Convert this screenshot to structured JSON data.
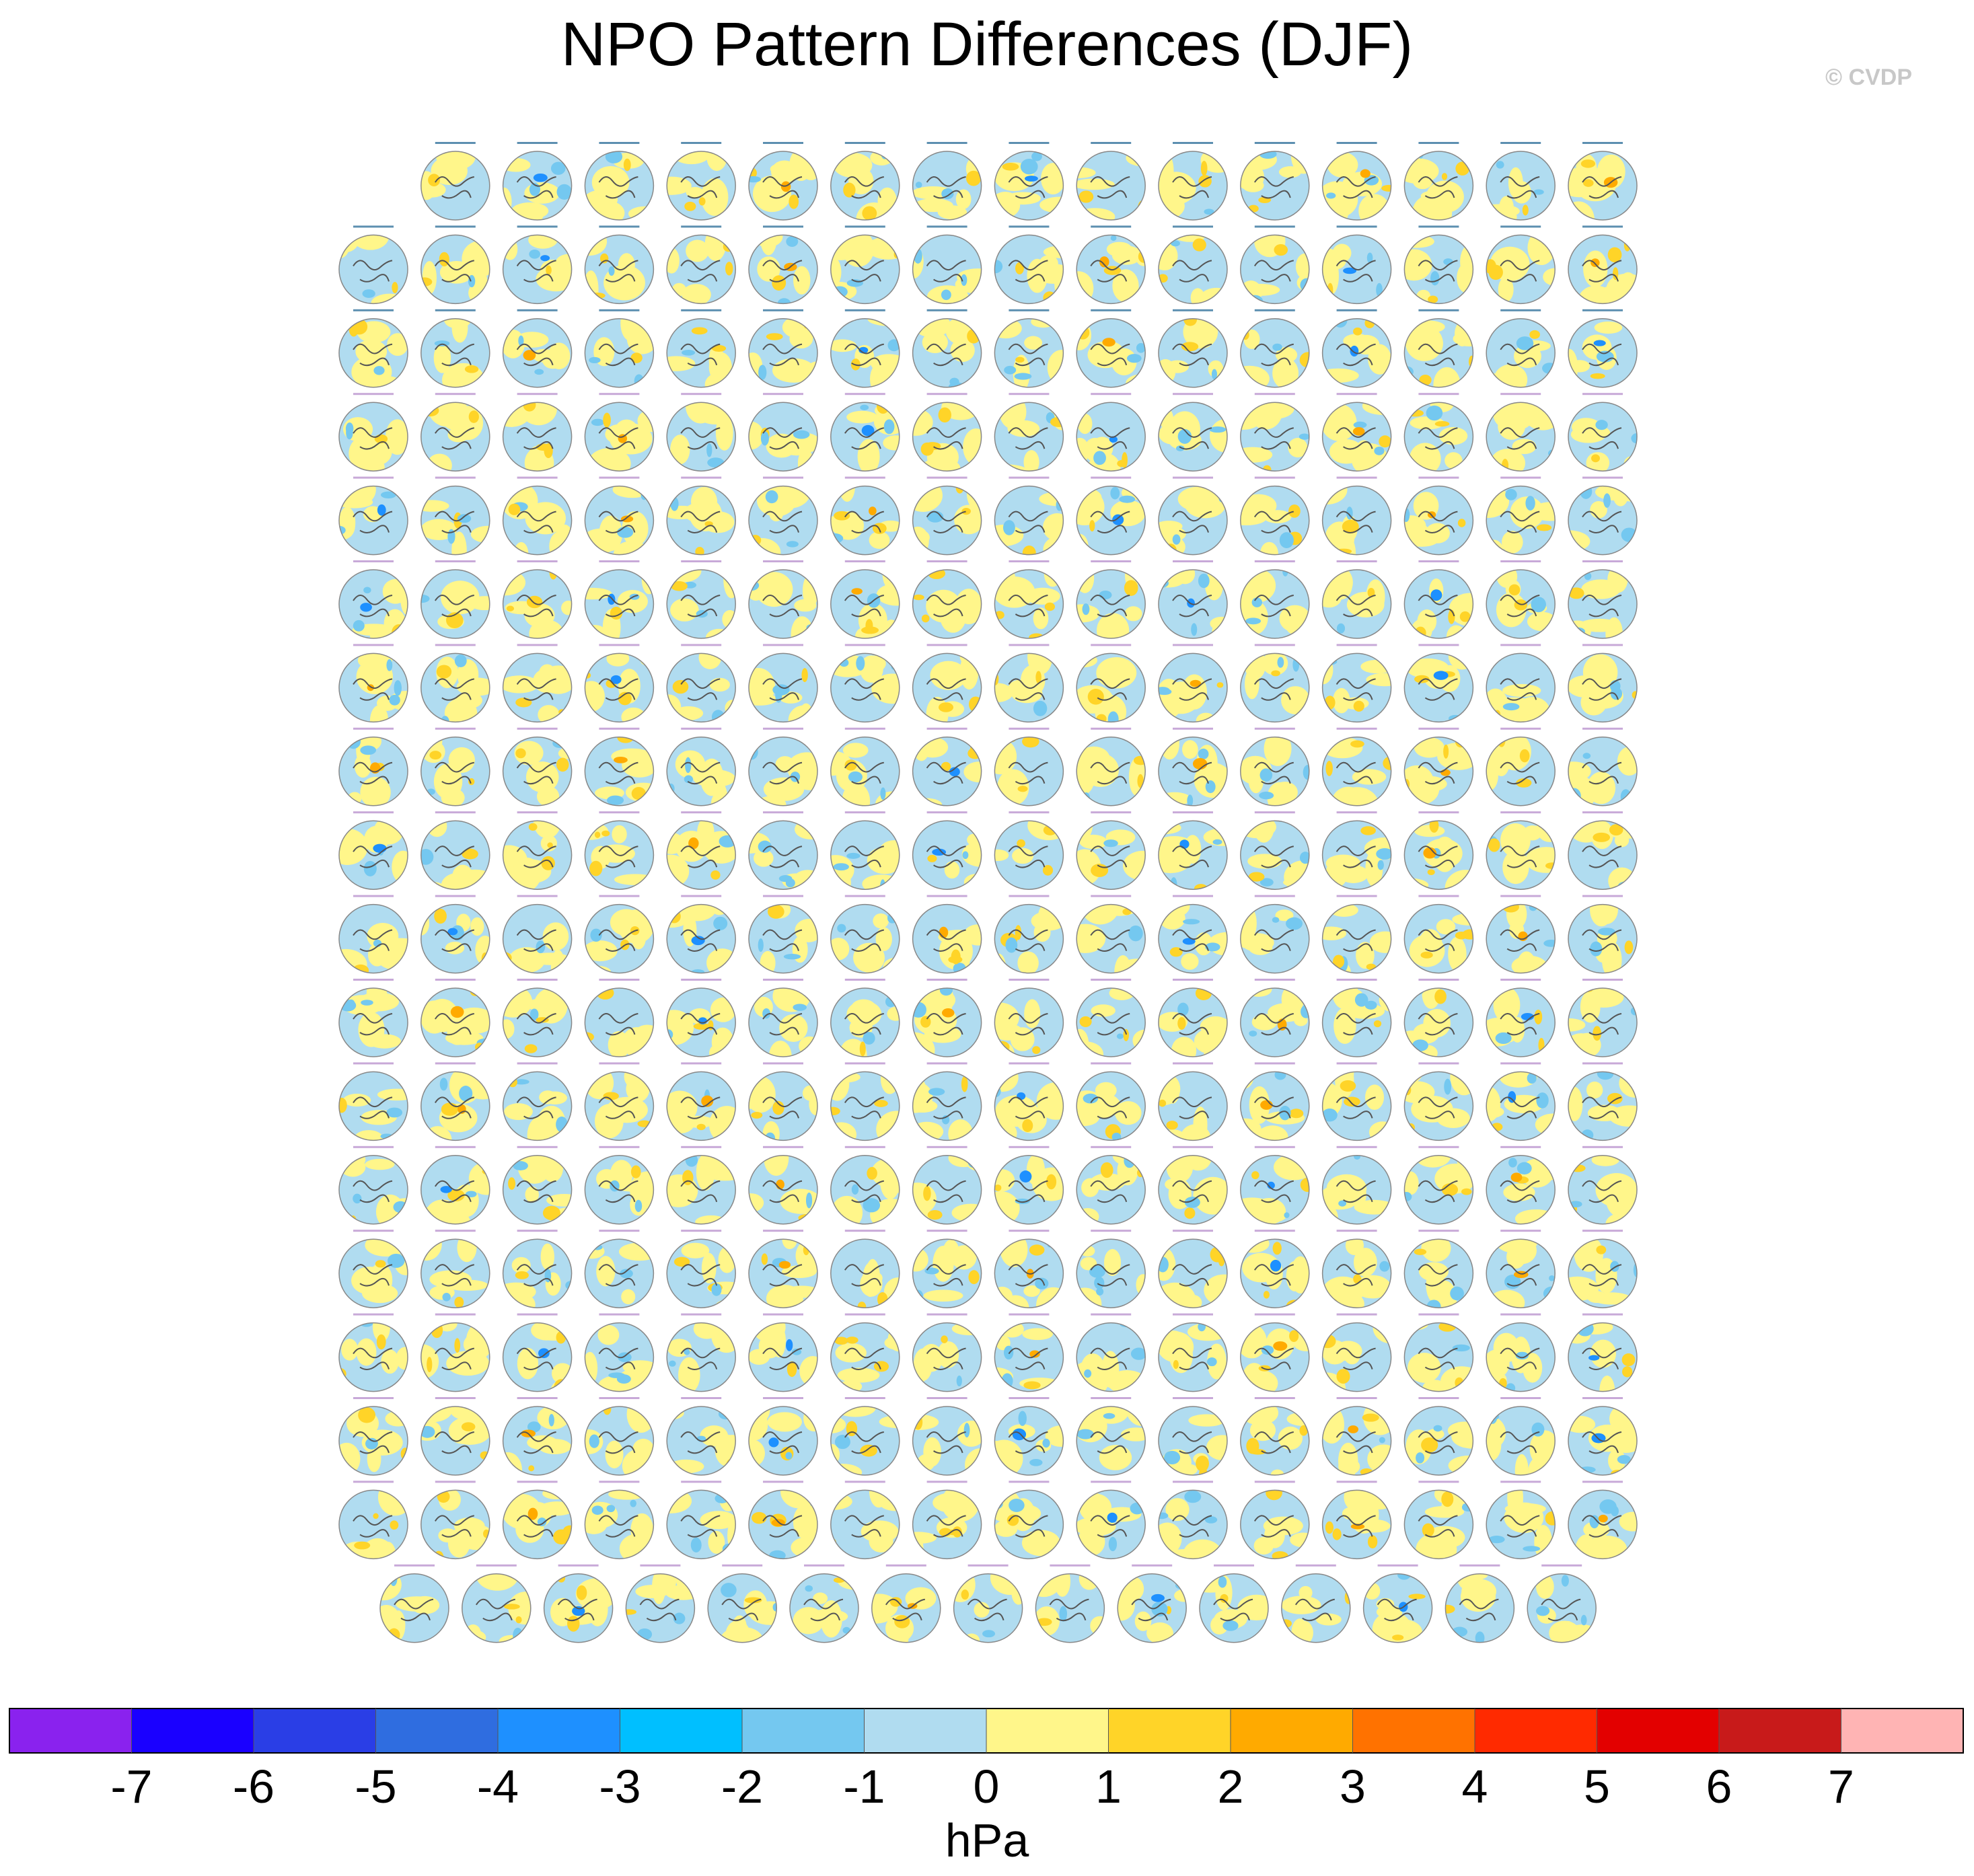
{
  "title": "NPO Pattern Differences (DJF)",
  "watermark": "© CVDP",
  "chart_data": {
    "type": "heatmap",
    "title": "NPO Pattern Differences (DJF)",
    "description_units": "hPa",
    "panel_rows": [
      15,
      16,
      16,
      16,
      16,
      16,
      16,
      16,
      16,
      16,
      16,
      16,
      16,
      16,
      16,
      16,
      16,
      15
    ],
    "panel_count": 286,
    "colorbar": {
      "label": "hPa",
      "tick_labels": [
        "-7",
        "-6",
        "-5",
        "-4",
        "-3",
        "-2",
        "-1",
        "0",
        "1",
        "2",
        "3",
        "4",
        "5",
        "6",
        "7"
      ],
      "levels": [
        -7,
        -6,
        -5,
        -4,
        -3,
        -2,
        -1,
        0,
        1,
        2,
        3,
        4,
        5,
        6,
        7
      ],
      "colors": [
        "#8a22ee",
        "#1a00ff",
        "#2a3ee6",
        "#2f6de0",
        "#1e90ff",
        "#00bfff",
        "#74c8f0",
        "#b0dcf0",
        "#fff68a",
        "#ffd428",
        "#ffaa00",
        "#ff7200",
        "#ff2a00",
        "#e30000",
        "#c81a1a",
        "#ffb4b4"
      ]
    }
  }
}
